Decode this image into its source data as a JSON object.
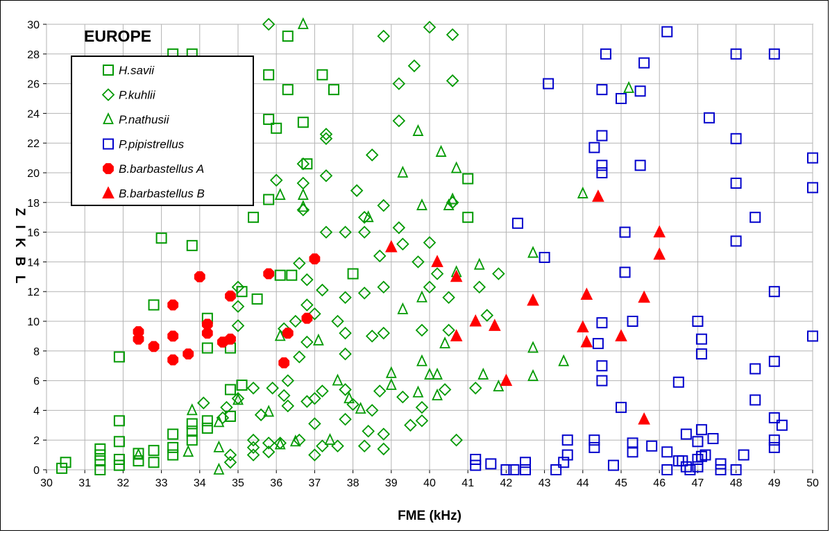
{
  "chart_data": {
    "type": "scatter",
    "title": "EUROPE",
    "xlabel": "FME (kHz)",
    "ylabel": "Z I K B L",
    "xlim": [
      30,
      50
    ],
    "ylim": [
      0,
      30
    ],
    "x_ticks": [
      "30",
      "31",
      "32",
      "33",
      "34",
      "35",
      "36",
      "37",
      "38",
      "39",
      "40",
      "41",
      "42",
      "43",
      "44",
      "45",
      "46",
      "47",
      "48",
      "49",
      "50"
    ],
    "y_ticks": [
      "0",
      "2",
      "4",
      "6",
      "8",
      "10",
      "12",
      "14",
      "16",
      "18",
      "20",
      "22",
      "24",
      "26",
      "28",
      "30"
    ],
    "grid": true,
    "legend_position": "top-left",
    "series": [
      {
        "name": "H.savii",
        "color": "#009900",
        "marker": "square-open",
        "points": [
          [
            30.4,
            0.1
          ],
          [
            30.5,
            0.5
          ],
          [
            31.4,
            0
          ],
          [
            31.4,
            0.6
          ],
          [
            31.4,
            1
          ],
          [
            31.4,
            1.4
          ],
          [
            31.9,
            0.3
          ],
          [
            31.9,
            0.7
          ],
          [
            31.9,
            1.9
          ],
          [
            31.9,
            3.3
          ],
          [
            31.9,
            7.6
          ],
          [
            32.4,
            0.6
          ],
          [
            32.4,
            1.1
          ],
          [
            32.8,
            0.5
          ],
          [
            32.8,
            1.3
          ],
          [
            32.8,
            11.1
          ],
          [
            33.3,
            1
          ],
          [
            33.3,
            1.5
          ],
          [
            33.3,
            2.4
          ],
          [
            33.3,
            28
          ],
          [
            33.8,
            2
          ],
          [
            33.8,
            2.6
          ],
          [
            33.8,
            3.1
          ],
          [
            33.8,
            28
          ],
          [
            33.8,
            15.1
          ],
          [
            33,
            15.6
          ],
          [
            34.2,
            8.2
          ],
          [
            34.2,
            2.8
          ],
          [
            34.2,
            3.3
          ],
          [
            34.2,
            10.2
          ],
          [
            34.8,
            3.6
          ],
          [
            34.8,
            5.4
          ],
          [
            34.8,
            8.2
          ],
          [
            35.1,
            5.7
          ],
          [
            35.1,
            12
          ],
          [
            35.4,
            17
          ],
          [
            35.5,
            11.5
          ],
          [
            35.8,
            18.2
          ],
          [
            35.8,
            23.6
          ],
          [
            35.8,
            26.6
          ],
          [
            36,
            23
          ],
          [
            36.1,
            13.1
          ],
          [
            36.4,
            13.1
          ],
          [
            36.3,
            25.6
          ],
          [
            36.3,
            29.2
          ],
          [
            36.7,
            23.4
          ],
          [
            36.8,
            20.6
          ],
          [
            37.2,
            26.6
          ],
          [
            37.5,
            25.6
          ],
          [
            38,
            13.2
          ],
          [
            41,
            19.6
          ],
          [
            41,
            17
          ]
        ]
      },
      {
        "name": "P.kuhlii",
        "color": "#009900",
        "marker": "diamond-open",
        "points": [
          [
            34.1,
            4.5
          ],
          [
            34.6,
            3.5
          ],
          [
            34.8,
            0.5
          ],
          [
            34.8,
            1
          ],
          [
            34.7,
            4.2
          ],
          [
            35,
            4.8
          ],
          [
            35,
            9.7
          ],
          [
            35,
            11
          ],
          [
            35,
            12.3
          ],
          [
            35.4,
            5.5
          ],
          [
            35.4,
            1
          ],
          [
            35.4,
            1.5
          ],
          [
            35.4,
            2
          ],
          [
            35.6,
            3.7
          ],
          [
            35.8,
            1.2
          ],
          [
            35.8,
            1.8
          ],
          [
            35.8,
            30
          ],
          [
            35.9,
            5.5
          ],
          [
            36,
            19.5
          ],
          [
            36.1,
            1.8
          ],
          [
            36.2,
            9.5
          ],
          [
            36.3,
            4.3
          ],
          [
            36.3,
            6
          ],
          [
            36.5,
            10
          ],
          [
            36.6,
            2
          ],
          [
            36.6,
            13.9
          ],
          [
            36.6,
            7.6
          ],
          [
            36.7,
            17.5
          ],
          [
            36.7,
            19.3
          ],
          [
            36.7,
            20.6
          ],
          [
            36.8,
            11.1
          ],
          [
            36.8,
            12.8
          ],
          [
            36.8,
            4.6
          ],
          [
            36.8,
            8.6
          ],
          [
            37,
            1
          ],
          [
            37,
            3.1
          ],
          [
            37,
            4.8
          ],
          [
            37,
            10.5
          ],
          [
            37.2,
            12.1
          ],
          [
            37.3,
            16
          ],
          [
            37.2,
            1.6
          ],
          [
            37.2,
            5.3
          ],
          [
            37.3,
            19.8
          ],
          [
            37.3,
            22.3
          ],
          [
            37.3,
            22.6
          ],
          [
            37.6,
            10
          ],
          [
            37.6,
            1.6
          ],
          [
            37.8,
            7.8
          ],
          [
            37.8,
            9.2
          ],
          [
            37.8,
            11.6
          ],
          [
            37.8,
            16
          ],
          [
            37.8,
            5.4
          ],
          [
            37.8,
            3.4
          ],
          [
            38,
            4.4
          ],
          [
            38.1,
            18.8
          ],
          [
            38.3,
            17
          ],
          [
            38.3,
            16
          ],
          [
            38.3,
            11.9
          ],
          [
            38.3,
            1.6
          ],
          [
            38.4,
            2.6
          ],
          [
            38.5,
            9
          ],
          [
            38.5,
            21.2
          ],
          [
            38.5,
            4
          ],
          [
            38.7,
            5.3
          ],
          [
            38.7,
            14.4
          ],
          [
            38.8,
            17.8
          ],
          [
            38.8,
            29.2
          ],
          [
            38.8,
            12.3
          ],
          [
            38.8,
            1.4
          ],
          [
            38.8,
            2.4
          ],
          [
            38.8,
            9.2
          ],
          [
            39.2,
            26
          ],
          [
            39.2,
            23.5
          ],
          [
            39.2,
            16.3
          ],
          [
            39.3,
            4.9
          ],
          [
            39.3,
            15.2
          ],
          [
            39.5,
            3
          ],
          [
            39.6,
            27.2
          ],
          [
            39.7,
            14
          ],
          [
            39.8,
            9.4
          ],
          [
            39.8,
            3.3
          ],
          [
            39.8,
            4.2
          ],
          [
            40,
            29.8
          ],
          [
            40,
            12.3
          ],
          [
            40,
            15.3
          ],
          [
            40.2,
            13.2
          ],
          [
            40.4,
            5.4
          ],
          [
            40.6,
            29.3
          ],
          [
            40.6,
            26.2
          ],
          [
            40.6,
            18
          ],
          [
            40.5,
            11.6
          ],
          [
            40.5,
            9.4
          ],
          [
            40.7,
            2
          ],
          [
            41.2,
            5.5
          ],
          [
            41.3,
            12.3
          ],
          [
            41.5,
            10.4
          ],
          [
            41.8,
            13.2
          ],
          [
            36.2,
            5
          ]
        ]
      },
      {
        "name": "P.nathusii",
        "color": "#009900",
        "marker": "triangle-open",
        "points": [
          [
            32.4,
            1
          ],
          [
            33.7,
            1.2
          ],
          [
            33.8,
            4
          ],
          [
            34.5,
            1.5
          ],
          [
            34.5,
            0
          ],
          [
            34.5,
            3.2
          ],
          [
            35,
            4.7
          ],
          [
            35.8,
            3.9
          ],
          [
            36.1,
            1.7
          ],
          [
            36.1,
            9
          ],
          [
            36.1,
            18.5
          ],
          [
            36.5,
            1.9
          ],
          [
            36.7,
            30
          ],
          [
            36.7,
            18.5
          ],
          [
            36.7,
            17.7
          ],
          [
            37.1,
            8.7
          ],
          [
            37.4,
            2
          ],
          [
            37.6,
            6
          ],
          [
            37.9,
            4.8
          ],
          [
            38.2,
            4.1
          ],
          [
            38.4,
            17
          ],
          [
            39,
            5.7
          ],
          [
            39,
            6.5
          ],
          [
            39.3,
            10.8
          ],
          [
            39.3,
            20
          ],
          [
            39.8,
            11.6
          ],
          [
            39.8,
            7.3
          ],
          [
            39.8,
            17.8
          ],
          [
            39.7,
            22.8
          ],
          [
            39.7,
            5.2
          ],
          [
            40,
            6.4
          ],
          [
            40.2,
            6.4
          ],
          [
            40.2,
            5
          ],
          [
            40.3,
            21.4
          ],
          [
            40.4,
            8.5
          ],
          [
            40.5,
            17.8
          ],
          [
            40.6,
            18.2
          ],
          [
            40.7,
            13.3
          ],
          [
            40.7,
            20.3
          ],
          [
            41.3,
            13.8
          ],
          [
            41.4,
            6.4
          ],
          [
            41.8,
            5.6
          ],
          [
            42.7,
            14.6
          ],
          [
            42.7,
            8.2
          ],
          [
            42.7,
            6.3
          ],
          [
            43.5,
            7.3
          ],
          [
            44,
            18.6
          ],
          [
            45.2,
            25.7
          ]
        ]
      },
      {
        "name": "P.pipistrellus",
        "color": "#0000cc",
        "marker": "square-open",
        "points": [
          [
            41.2,
            0.3
          ],
          [
            41.2,
            0.7
          ],
          [
            41.6,
            0.4
          ],
          [
            42,
            0
          ],
          [
            42.2,
            0
          ],
          [
            42.3,
            16.6
          ],
          [
            42.5,
            0
          ],
          [
            42.5,
            0.5
          ],
          [
            43,
            14.3
          ],
          [
            43.1,
            26
          ],
          [
            43.3,
            0
          ],
          [
            43.5,
            0.5
          ],
          [
            43.6,
            2
          ],
          [
            43.6,
            1
          ],
          [
            44.3,
            21.7
          ],
          [
            44.3,
            2
          ],
          [
            44.3,
            1.5
          ],
          [
            44.4,
            8.5
          ],
          [
            44.5,
            22.5
          ],
          [
            44.5,
            20.5
          ],
          [
            44.5,
            20
          ],
          [
            44.5,
            25.6
          ],
          [
            44.5,
            9.9
          ],
          [
            44.6,
            28
          ],
          [
            44.5,
            7
          ],
          [
            44.5,
            6
          ],
          [
            44.8,
            0.3
          ],
          [
            45,
            4.2
          ],
          [
            45,
            25
          ],
          [
            45.1,
            16
          ],
          [
            45.1,
            13.3
          ],
          [
            45.3,
            10
          ],
          [
            45.3,
            1.2
          ],
          [
            45.3,
            1.8
          ],
          [
            45.5,
            25.5
          ],
          [
            45.5,
            20.5
          ],
          [
            45.6,
            27.4
          ],
          [
            45.8,
            1.6
          ],
          [
            46.2,
            29.5
          ],
          [
            46.2,
            1.2
          ],
          [
            46.2,
            0
          ],
          [
            46.5,
            0.6
          ],
          [
            46.5,
            5.9
          ],
          [
            46.6,
            0.6
          ],
          [
            46.7,
            2.4
          ],
          [
            46.7,
            0.2
          ],
          [
            46.8,
            0
          ],
          [
            47,
            1.9
          ],
          [
            47,
            10
          ],
          [
            47,
            0.7
          ],
          [
            47,
            0.2
          ],
          [
            47.1,
            0.9
          ],
          [
            47.1,
            7.8
          ],
          [
            47.1,
            8.8
          ],
          [
            47.1,
            2.7
          ],
          [
            47.2,
            1
          ],
          [
            47.3,
            23.7
          ],
          [
            47.4,
            2.1
          ],
          [
            47.6,
            0
          ],
          [
            47.6,
            0.4
          ],
          [
            48,
            28
          ],
          [
            48,
            22.3
          ],
          [
            48,
            19.3
          ],
          [
            48,
            15.4
          ],
          [
            48,
            0
          ],
          [
            48.2,
            1
          ],
          [
            48.5,
            17
          ],
          [
            48.5,
            4.7
          ],
          [
            48.5,
            6.8
          ],
          [
            49,
            28
          ],
          [
            49,
            12
          ],
          [
            49,
            7.3
          ],
          [
            49,
            3.5
          ],
          [
            49,
            1.5
          ],
          [
            49,
            2
          ],
          [
            49.2,
            3
          ],
          [
            50,
            21
          ],
          [
            50,
            19
          ],
          [
            50,
            9
          ]
        ]
      },
      {
        "name": "B.barbastellus A",
        "color": "#ff0000",
        "marker": "octagon-filled",
        "points": [
          [
            32.4,
            8.8
          ],
          [
            32.4,
            9.3
          ],
          [
            32.8,
            8.3
          ],
          [
            33.3,
            7.4
          ],
          [
            33.3,
            9
          ],
          [
            33.3,
            11.1
          ],
          [
            33.7,
            7.8
          ],
          [
            34,
            13
          ],
          [
            34.2,
            9.2
          ],
          [
            34.2,
            9.8
          ],
          [
            34.6,
            8.6
          ],
          [
            34.8,
            8.8
          ],
          [
            34.8,
            11.7
          ],
          [
            35.8,
            13.2
          ],
          [
            36.2,
            7.2
          ],
          [
            36.3,
            9.2
          ],
          [
            36.8,
            10.2
          ],
          [
            37,
            14.2
          ]
        ]
      },
      {
        "name": "B.barbastellus B",
        "color": "#ff0000",
        "marker": "triangle-filled",
        "points": [
          [
            39,
            15
          ],
          [
            40.2,
            14
          ],
          [
            40.7,
            13
          ],
          [
            40.7,
            9
          ],
          [
            41.2,
            10
          ],
          [
            41.7,
            9.7
          ],
          [
            42,
            6
          ],
          [
            42.7,
            11.4
          ],
          [
            44,
            9.6
          ],
          [
            44.1,
            11.8
          ],
          [
            44.1,
            8.6
          ],
          [
            44.4,
            18.4
          ],
          [
            45,
            9
          ],
          [
            45.6,
            11.6
          ],
          [
            45.6,
            3.4
          ],
          [
            46,
            16
          ],
          [
            46,
            14.5
          ]
        ]
      }
    ]
  }
}
